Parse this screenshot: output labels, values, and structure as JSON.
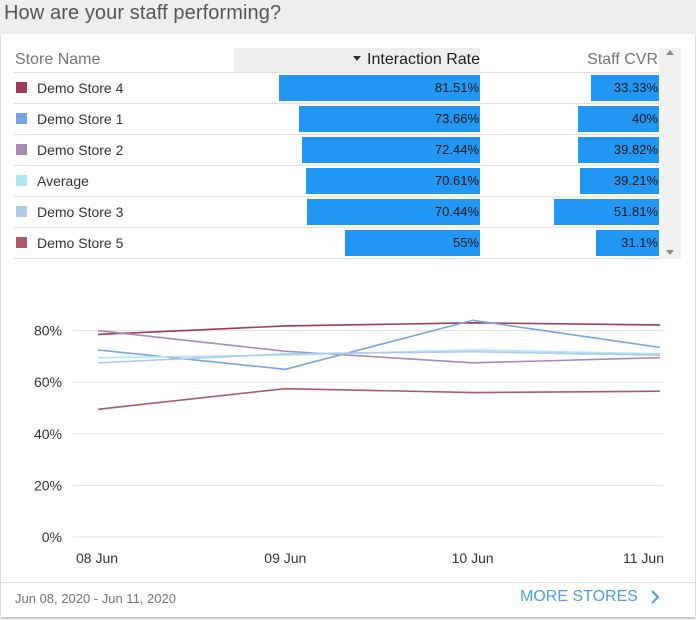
{
  "title": "How are your staff performing?",
  "table": {
    "headers": {
      "store_name": "Store Name",
      "interaction_rate": "Interaction Rate",
      "staff_cvr": "Staff CVR"
    },
    "sort": {
      "column": "Interaction Rate",
      "direction": "descending"
    },
    "rows": [
      {
        "name": "Demo Store 4",
        "color": "#a03a5b",
        "interaction_rate": 81.51,
        "interaction_rate_label": "81.51%",
        "staff_cvr": 33.33,
        "staff_cvr_label": "33.33%"
      },
      {
        "name": "Demo Store 1",
        "color": "#7aa3e6",
        "interaction_rate": 73.66,
        "interaction_rate_label": "73.66%",
        "staff_cvr": 40,
        "staff_cvr_label": "40%"
      },
      {
        "name": "Demo Store 2",
        "color": "#a98bb2",
        "interaction_rate": 72.44,
        "interaction_rate_label": "72.44%",
        "staff_cvr": 39.82,
        "staff_cvr_label": "39.82%"
      },
      {
        "name": "Average",
        "color": "#b0e6f2",
        "interaction_rate": 70.61,
        "interaction_rate_label": "70.61%",
        "staff_cvr": 39.21,
        "staff_cvr_label": "39.21%"
      },
      {
        "name": "Demo Store 3",
        "color": "#aecbeb",
        "interaction_rate": 70.44,
        "interaction_rate_label": "70.44%",
        "staff_cvr": 51.81,
        "staff_cvr_label": "51.81%"
      },
      {
        "name": "Demo Store 5",
        "color": "#ad5967",
        "interaction_rate": 55,
        "interaction_rate_label": "55%",
        "staff_cvr": 31.1,
        "staff_cvr_label": "31.1%"
      }
    ],
    "bar_color": "#2196f3"
  },
  "chart_data": {
    "type": "line",
    "categories": [
      "08 Jun",
      "09 Jun",
      "10 Jun",
      "11 Jun"
    ],
    "ylim": [
      0,
      100
    ],
    "yticks": [
      "0%",
      "20%",
      "40%",
      "60%",
      "80%"
    ],
    "ytick_values": [
      0,
      20,
      40,
      60,
      80
    ],
    "grid": true,
    "series": [
      {
        "name": "Demo Store 4",
        "color": "#a03a5b",
        "values": [
          78.5,
          81.8,
          83.0,
          82.2
        ]
      },
      {
        "name": "Demo Store 1",
        "color": "#7aa3e6",
        "values": [
          72.5,
          65.0,
          84.0,
          73.5
        ]
      },
      {
        "name": "Demo Store 2",
        "color": "#a98bb2",
        "values": [
          80.0,
          72.0,
          67.5,
          69.5
        ]
      },
      {
        "name": "Average",
        "color": "#b0e6f2",
        "values": [
          69.5,
          70.5,
          72.5,
          71.0
        ]
      },
      {
        "name": "Demo Store 3",
        "color": "#aecbeb",
        "values": [
          67.5,
          71.0,
          71.8,
          70.5
        ]
      },
      {
        "name": "Demo Store 5",
        "color": "#ad5967",
        "values": [
          49.5,
          57.5,
          56.0,
          56.5
        ]
      }
    ]
  },
  "footer": {
    "date_range": "Jun 08, 2020 - Jun 11, 2020",
    "more_label": "MORE STORES",
    "more_icon": "chevron-right-icon",
    "link_color": "#4a9fe8"
  }
}
